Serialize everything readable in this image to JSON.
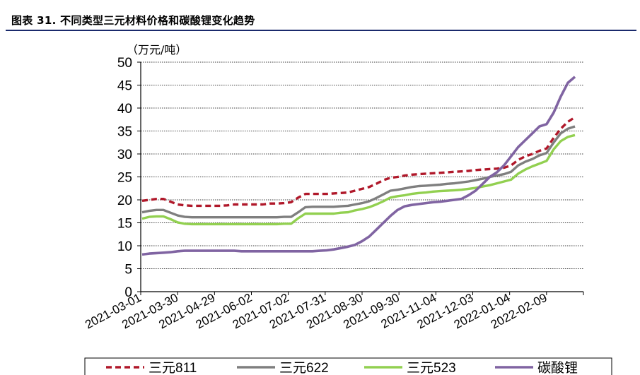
{
  "figure": {
    "title": "图表 31. 不同类型三元材料价格和碳酸锂变化趋势"
  },
  "chart_data": {
    "type": "line",
    "unit_label": "（万元/吨）",
    "ylim": [
      0,
      50
    ],
    "yticks": [
      0,
      5,
      10,
      15,
      20,
      25,
      30,
      35,
      40,
      45,
      50
    ],
    "x_tick_labels": [
      "2021-03-01",
      "2021-03-30",
      "2021-04-29",
      "2021-06-02",
      "2021-07-02",
      "2021-07-31",
      "2021-08-30",
      "2021-09-30",
      "2021-11-04",
      "2021-12-03",
      "2022-01-04",
      "2022-02-09"
    ],
    "x_points_count": 62,
    "grid": true,
    "legend_position": "bottom",
    "series": [
      {
        "name": "三元811",
        "color": "#b0182a",
        "dash": "dashed",
        "values": [
          19.8,
          20.0,
          20.2,
          20.2,
          19.6,
          19.0,
          18.8,
          18.7,
          18.7,
          18.7,
          18.7,
          18.7,
          18.8,
          19.0,
          19.0,
          19.0,
          19.0,
          19.0,
          19.2,
          19.2,
          19.3,
          19.5,
          20.5,
          21.3,
          21.3,
          21.3,
          21.3,
          21.4,
          21.5,
          21.6,
          22.0,
          22.4,
          22.8,
          23.5,
          24.3,
          24.8,
          25.0,
          25.3,
          25.5,
          25.6,
          25.7,
          25.8,
          25.9,
          26.0,
          26.1,
          26.2,
          26.3,
          26.5,
          26.6,
          26.7,
          26.8,
          27.0,
          27.5,
          28.7,
          29.5,
          30.0,
          30.7,
          31.2,
          33.5,
          35.5,
          37.0,
          38.0
        ]
      },
      {
        "name": "三元622",
        "color": "#7f7f7f",
        "dash": "solid",
        "values": [
          17.3,
          17.6,
          17.8,
          17.8,
          17.2,
          16.6,
          16.3,
          16.2,
          16.2,
          16.2,
          16.2,
          16.2,
          16.2,
          16.2,
          16.2,
          16.2,
          16.2,
          16.2,
          16.2,
          16.2,
          16.3,
          16.3,
          17.3,
          18.4,
          18.5,
          18.5,
          18.5,
          18.5,
          18.6,
          18.7,
          19.0,
          19.3,
          19.7,
          20.4,
          21.2,
          22.0,
          22.2,
          22.5,
          22.8,
          23.0,
          23.1,
          23.2,
          23.3,
          23.5,
          23.6,
          23.8,
          24.0,
          24.3,
          24.6,
          25.0,
          25.3,
          25.6,
          26.1,
          27.5,
          28.3,
          28.9,
          29.7,
          30.2,
          32.5,
          34.5,
          35.5,
          36.0
        ]
      },
      {
        "name": "三元523",
        "color": "#92d050",
        "dash": "solid",
        "values": [
          15.9,
          16.3,
          16.4,
          16.4,
          15.8,
          15.1,
          14.8,
          14.7,
          14.7,
          14.7,
          14.7,
          14.7,
          14.7,
          14.7,
          14.7,
          14.7,
          14.7,
          14.7,
          14.7,
          14.7,
          14.8,
          14.8,
          16.0,
          17.0,
          17.0,
          17.0,
          17.0,
          17.0,
          17.2,
          17.3,
          17.7,
          18.0,
          18.4,
          19.0,
          19.7,
          20.5,
          20.8,
          21.0,
          21.3,
          21.5,
          21.6,
          21.8,
          21.9,
          22.0,
          22.1,
          22.2,
          22.4,
          22.6,
          22.9,
          23.2,
          23.6,
          24.0,
          24.4,
          25.7,
          26.6,
          27.3,
          27.9,
          28.5,
          31.0,
          32.8,
          33.7,
          34.1
        ]
      },
      {
        "name": "碳酸锂",
        "color": "#8064a2",
        "dash": "solid",
        "values": [
          8.1,
          8.3,
          8.4,
          8.5,
          8.6,
          8.8,
          8.9,
          8.9,
          8.9,
          8.9,
          8.9,
          8.9,
          8.9,
          8.9,
          8.8,
          8.8,
          8.8,
          8.8,
          8.8,
          8.8,
          8.8,
          8.8,
          8.8,
          8.8,
          8.8,
          8.9,
          9.0,
          9.2,
          9.5,
          9.8,
          10.2,
          11.0,
          12.0,
          13.5,
          15.0,
          16.5,
          17.8,
          18.6,
          18.9,
          19.1,
          19.3,
          19.5,
          19.6,
          19.8,
          20.0,
          20.2,
          21.0,
          22.0,
          23.5,
          25.0,
          26.0,
          27.5,
          29.5,
          31.5,
          33.0,
          34.5,
          36.0,
          36.5,
          39.0,
          42.5,
          45.5,
          46.8
        ]
      }
    ]
  }
}
